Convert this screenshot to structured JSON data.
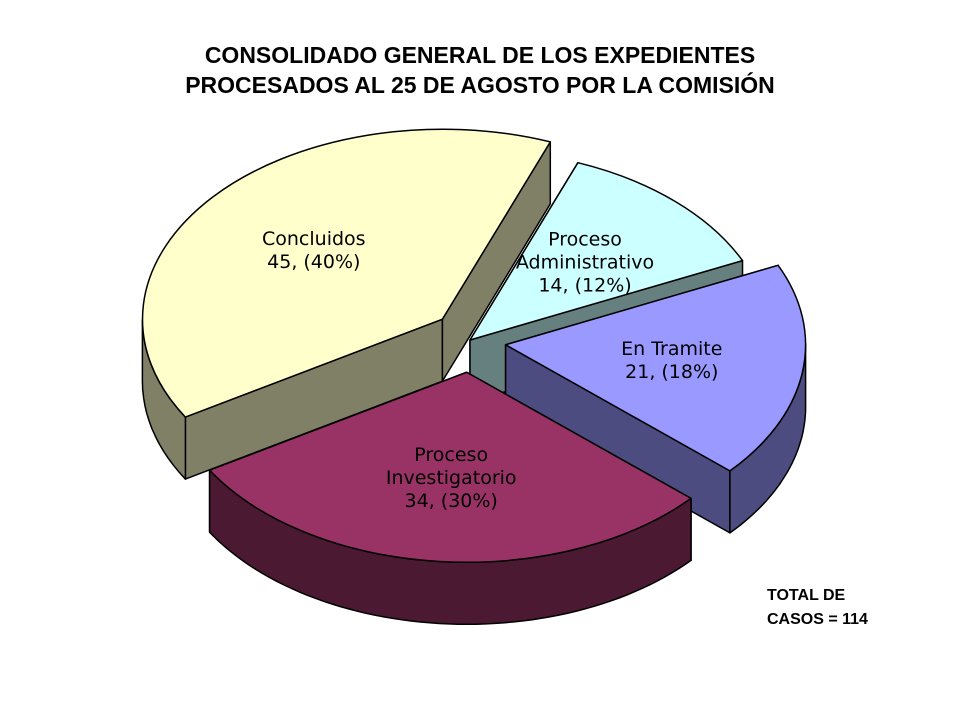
{
  "chart_data": {
    "type": "pie",
    "title_lines": [
      "CONSOLIDADO GENERAL DE LOS EXPEDIENTES",
      "PROCESADOS AL 25 DE AGOSTO POR LA COMISIÓN"
    ],
    "slices": [
      {
        "label_lines": [
          "Concluidos",
          "45, (40%)"
        ],
        "value": 45,
        "percent": 40,
        "color": "#FFFFCC",
        "side_color": "#808066",
        "exploded": true
      },
      {
        "label_lines": [
          "Proceso",
          "Administrativo",
          "14, (12%)"
        ],
        "value": 14,
        "percent": 12,
        "color": "#CCFFFF",
        "side_color": "#66807F",
        "exploded": false
      },
      {
        "label_lines": [
          "En Tramite",
          "21, (18%)"
        ],
        "value": 21,
        "percent": 18,
        "color": "#9999FF",
        "side_color": "#4C4C80",
        "exploded": true
      },
      {
        "label_lines": [
          "Proceso",
          "Investigatorio",
          "34, (30%)"
        ],
        "value": 34,
        "percent": 30,
        "color": "#993366",
        "side_color": "#4C1933",
        "exploded": true
      }
    ],
    "total_lines": [
      "TOTAL DE",
      "CASOS  = 114"
    ]
  }
}
